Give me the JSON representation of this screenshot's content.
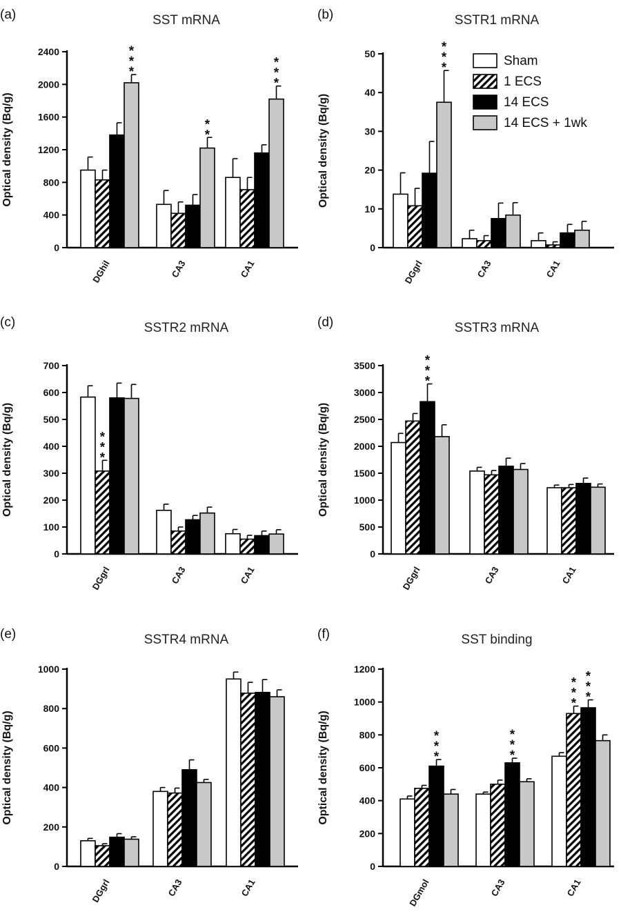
{
  "legend": [
    "Sham",
    "1 ECS",
    "14 ECS",
    "14 ECS + 1wk"
  ],
  "series_colors": {
    "sham": "#ffffff",
    "one_ecs": "hatch",
    "fourteen_ecs": "#000000",
    "fourteen_ecs_1wk": "#c8c8c8"
  },
  "chart_data": [
    {
      "panel": "(a)",
      "type": "bar",
      "title": "SST mRNA",
      "ylabel": "Optical density (Bq/g)",
      "ylim": [
        0,
        2400
      ],
      "yticks": [
        0,
        400,
        800,
        1200,
        1600,
        2000,
        2400
      ],
      "categories": [
        "DGhil",
        "CA3",
        "CA1"
      ],
      "series": [
        {
          "name": "Sham",
          "values": [
            950,
            530,
            860
          ],
          "errors": [
            160,
            170,
            230
          ]
        },
        {
          "name": "1 ECS",
          "values": [
            830,
            420,
            710
          ],
          "errors": [
            120,
            140,
            150
          ]
        },
        {
          "name": "14 ECS",
          "values": [
            1380,
            520,
            1160
          ],
          "errors": [
            150,
            130,
            100
          ]
        },
        {
          "name": "14 ECS + 1wk",
          "values": [
            2020,
            1220,
            1820
          ],
          "errors": [
            100,
            130,
            160
          ]
        }
      ],
      "stars": [
        {
          "category": 0,
          "series": 3,
          "text": "***"
        },
        {
          "category": 1,
          "series": 3,
          "text": "**"
        },
        {
          "category": 2,
          "series": 3,
          "text": "***"
        }
      ]
    },
    {
      "panel": "(b)",
      "type": "bar",
      "title": "SSTR1 mRNA",
      "ylabel": "Optical density (Bq/g)",
      "ylim": [
        0,
        50
      ],
      "yticks": [
        0,
        10,
        20,
        30,
        40,
        50
      ],
      "categories": [
        "DGgrl",
        "CA3",
        "CA1"
      ],
      "series": [
        {
          "name": "Sham",
          "values": [
            13.8,
            2.3,
            1.8
          ],
          "errors": [
            5.5,
            2.2,
            2.0
          ]
        },
        {
          "name": "1 ECS",
          "values": [
            10.8,
            1.8,
            0.7
          ],
          "errors": [
            4.5,
            1.3,
            0.8
          ]
        },
        {
          "name": "14 ECS",
          "values": [
            19.2,
            7.5,
            3.8
          ],
          "errors": [
            8.2,
            4.0,
            2.2
          ]
        },
        {
          "name": "14 ECS + 1wk",
          "values": [
            37.5,
            8.4,
            4.5
          ],
          "errors": [
            8.2,
            3.2,
            2.3
          ]
        }
      ],
      "stars": [
        {
          "category": 0,
          "series": 3,
          "text": "***"
        }
      ]
    },
    {
      "panel": "(c)",
      "type": "bar",
      "title": "SSTR2 mRNA",
      "ylabel": "Optical density (Bq/g)",
      "ylim": [
        0,
        700
      ],
      "yticks": [
        0,
        100,
        200,
        300,
        400,
        500,
        600,
        700
      ],
      "categories": [
        "DGgrl",
        "CA3",
        "CA1"
      ],
      "series": [
        {
          "name": "Sham",
          "values": [
            583,
            162,
            75
          ],
          "errors": [
            42,
            23,
            16
          ]
        },
        {
          "name": "1 ECS",
          "values": [
            308,
            85,
            55
          ],
          "errors": [
            40,
            15,
            14
          ]
        },
        {
          "name": "14 ECS",
          "values": [
            580,
            127,
            68
          ],
          "errors": [
            55,
            16,
            17
          ]
        },
        {
          "name": "14 ECS + 1wk",
          "values": [
            578,
            152,
            74
          ],
          "errors": [
            52,
            22,
            16
          ]
        }
      ],
      "stars": [
        {
          "category": 0,
          "series": 1,
          "text": "***"
        }
      ]
    },
    {
      "panel": "(d)",
      "type": "bar",
      "title": "SSTR3 mRNA",
      "ylabel": "Optical density (Bq/g)",
      "ylim": [
        0,
        3500
      ],
      "yticks": [
        0,
        500,
        1000,
        1500,
        2000,
        2500,
        3000,
        3500
      ],
      "categories": [
        "DGgrl",
        "CA3",
        "CA1"
      ],
      "series": [
        {
          "name": "Sham",
          "values": [
            2070,
            1540,
            1230
          ],
          "errors": [
            170,
            70,
            50
          ]
        },
        {
          "name": "1 ECS",
          "values": [
            2470,
            1470,
            1230
          ],
          "errors": [
            140,
            80,
            60
          ]
        },
        {
          "name": "14 ECS",
          "values": [
            2830,
            1630,
            1310
          ],
          "errors": [
            330,
            150,
            100
          ]
        },
        {
          "name": "14 ECS + 1wk",
          "values": [
            2180,
            1570,
            1240
          ],
          "errors": [
            220,
            110,
            60
          ]
        }
      ],
      "stars": [
        {
          "category": 0,
          "series": 2,
          "text": "***"
        }
      ]
    },
    {
      "panel": "(e)",
      "type": "bar",
      "title": "SSTR4 mRNA",
      "ylabel": "Optical density (Bq/g)",
      "ylim": [
        0,
        1000
      ],
      "yticks": [
        0,
        200,
        400,
        600,
        800,
        1000
      ],
      "categories": [
        "DGgrl",
        "CA3",
        "CA1"
      ],
      "series": [
        {
          "name": "Sham",
          "values": [
            130,
            380,
            950
          ],
          "errors": [
            12,
            20,
            35
          ]
        },
        {
          "name": "1 ECS",
          "values": [
            105,
            372,
            878
          ],
          "errors": [
            10,
            25,
            55
          ]
        },
        {
          "name": "14 ECS",
          "values": [
            148,
            490,
            882
          ],
          "errors": [
            18,
            50,
            65
          ]
        },
        {
          "name": "14 ECS + 1wk",
          "values": [
            138,
            425,
            860
          ],
          "errors": [
            12,
            16,
            35
          ]
        }
      ],
      "stars": []
    },
    {
      "panel": "(f)",
      "type": "bar",
      "title": "SST binding",
      "ylabel": "Optical density (Bq/g)",
      "ylim": [
        0,
        1200
      ],
      "yticks": [
        0,
        200,
        400,
        600,
        800,
        1000,
        1200
      ],
      "categories": [
        "DGmol",
        "CA3",
        "CA1"
      ],
      "series": [
        {
          "name": "Sham",
          "values": [
            410,
            440,
            670
          ],
          "errors": [
            18,
            12,
            22
          ]
        },
        {
          "name": "1 ECS",
          "values": [
            475,
            500,
            930
          ],
          "errors": [
            18,
            25,
            45
          ]
        },
        {
          "name": "14 ECS",
          "values": [
            610,
            630,
            965
          ],
          "errors": [
            40,
            28,
            48
          ]
        },
        {
          "name": "14 ECS + 1wk",
          "values": [
            440,
            515,
            765
          ],
          "errors": [
            28,
            18,
            35
          ]
        }
      ],
      "stars": [
        {
          "category": 0,
          "series": 2,
          "text": "***"
        },
        {
          "category": 1,
          "series": 2,
          "text": "***"
        },
        {
          "category": 2,
          "series": 1,
          "text": "***"
        },
        {
          "category": 2,
          "series": 2,
          "text": "***"
        }
      ]
    }
  ]
}
